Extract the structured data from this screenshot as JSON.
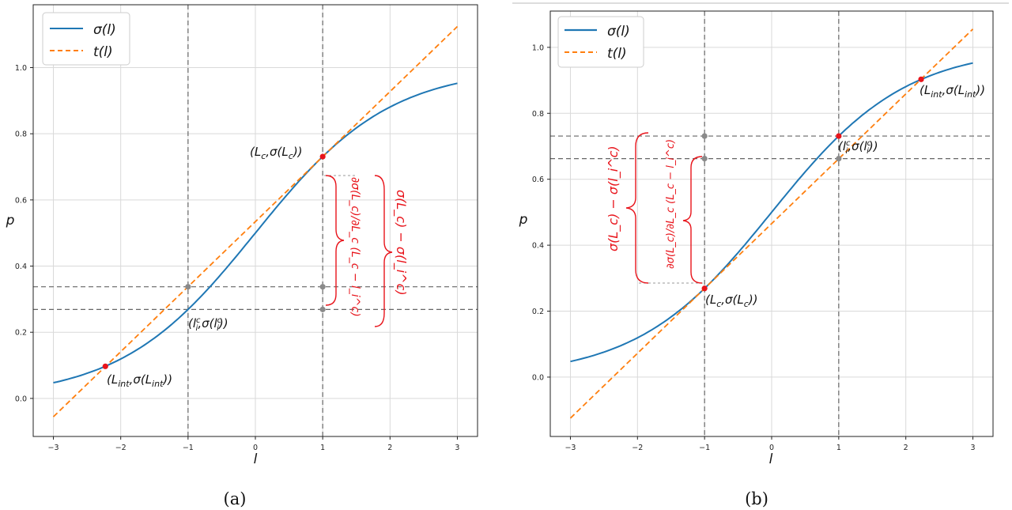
{
  "chart_data": [
    {
      "panel": "(a)",
      "type": "line",
      "xlabel": "l",
      "ylabel": "p",
      "xlim": [
        -3.3,
        3.3
      ],
      "ylim": [
        -0.115,
        1.19
      ],
      "xticks": [
        -3,
        -2,
        -1,
        0,
        1,
        2,
        3
      ],
      "yticks": [
        0.0,
        0.2,
        0.4,
        0.6,
        0.8,
        1.0
      ],
      "xtick_labels": [
        "−3",
        "−2",
        "−1",
        "0",
        "1",
        "2",
        "3"
      ],
      "ytick_labels": [
        "0.0",
        "0.2",
        "0.4",
        "0.6",
        "0.8",
        "1.0"
      ],
      "grid": true,
      "legend": {
        "placement": "top-left",
        "entries": [
          "σ(l)",
          "t(l)"
        ]
      },
      "series": [
        {
          "name": "σ(l)",
          "kind": "sigmoid",
          "x_range": [
            -3,
            3
          ],
          "color": "#1f77b4",
          "style": "solid"
        },
        {
          "name": "t(l)",
          "kind": "tangent_at",
          "tangent_x": 1,
          "x_range": [
            -3,
            3
          ],
          "color": "#ff7f0e",
          "style": "dashed"
        }
      ],
      "vlines": [
        -1,
        1
      ],
      "hlines": [
        0.3375,
        0.2689
      ],
      "red_points": [
        {
          "x": 1,
          "y": 0.731,
          "label": "(L_c,σ(L_c))"
        },
        {
          "x": -2.228,
          "y": 0.097,
          "label": "(L_int,σ(L_int))"
        }
      ],
      "gray_points": [
        {
          "x": -1,
          "y": 0.3375
        },
        {
          "x": 1,
          "y": 0.3375
        },
        {
          "x": 1,
          "y": 0.2689
        }
      ],
      "point_labels": {
        "lc": "(L",
        "lc_sub": "c",
        "lc_mid": ",σ(L",
        "lc_sub2": "c",
        "lc_end": "))",
        "lint": "(L",
        "lint_sub": "int",
        "lint_mid": ",σ(L",
        "lint_sub2": "int",
        "lint_end": "))",
        "lic": "(l",
        "lic_sup": "c",
        "lic_sub": "i",
        "lic_mid": ",σ(l",
        "lic_sup2": "c",
        "lic_sub2": "i",
        "lic_end": "))"
      },
      "braces": [
        {
          "expr": "∂σ(L_c)/∂L_c (L_c − l_i^c)"
        },
        {
          "expr": "σ(L_c) − σ(l_i^c)"
        }
      ]
    },
    {
      "panel": "(b)",
      "type": "line",
      "xlabel": "l",
      "ylabel": "p",
      "xlim": [
        -3.3,
        3.3
      ],
      "ylim": [
        -0.18,
        1.11
      ],
      "xticks": [
        -3,
        -2,
        -1,
        0,
        1,
        2,
        3
      ],
      "yticks": [
        0.0,
        0.2,
        0.4,
        0.6,
        0.8,
        1.0
      ],
      "xtick_labels": [
        "−3",
        "−2",
        "−1",
        "0",
        "1",
        "2",
        "3"
      ],
      "ytick_labels": [
        "0.0",
        "0.2",
        "0.4",
        "0.6",
        "0.8",
        "1.0"
      ],
      "grid": true,
      "legend": {
        "placement": "top-left",
        "entries": [
          "σ(l)",
          "t(l)"
        ]
      },
      "series": [
        {
          "name": "σ(l)",
          "kind": "sigmoid",
          "x_range": [
            -3,
            3
          ],
          "color": "#1f77b4",
          "style": "solid"
        },
        {
          "name": "t(l)",
          "kind": "tangent_at",
          "tangent_x": -1,
          "x_range": [
            -3,
            3
          ],
          "color": "#ff7f0e",
          "style": "dashed"
        }
      ],
      "vlines": [
        -1,
        1
      ],
      "hlines": [
        0.731,
        0.6625
      ],
      "red_points": [
        {
          "x": -1,
          "y": 0.2689,
          "label": "(L_c,σ(L_c))"
        },
        {
          "x": 1,
          "y": 0.731,
          "label": "(l_i^c,σ(l_i^c))"
        },
        {
          "x": 2.228,
          "y": 0.903,
          "label": "(L_int,σ(L_int))"
        }
      ],
      "gray_points": [
        {
          "x": -1,
          "y": 0.731
        },
        {
          "x": -1,
          "y": 0.6625
        },
        {
          "x": 1,
          "y": 0.6625
        }
      ],
      "point_labels": {
        "lc": "(L",
        "lc_sub": "c",
        "lc_mid": ",σ(L",
        "lc_sub2": "c",
        "lc_end": "))",
        "lint": "(L",
        "lint_sub": "int",
        "lint_mid": ",σ(L",
        "lint_sub2": "int",
        "lint_end": "))",
        "lic": "(l",
        "lic_sup": "c",
        "lic_sub": "i",
        "lic_mid": ",σ(l",
        "lic_sup2": "c",
        "lic_sub2": "i",
        "lic_end": "))"
      },
      "braces": [
        {
          "expr": "σ(L_c) − σ(l_i^c)"
        },
        {
          "expr": "∂σ(L_c)/∂L_c (L_c − l_i^c)"
        }
      ]
    }
  ],
  "colors": {
    "sigma": "#1f77b4",
    "tangent": "#ff7f0e",
    "point": "#e8141b",
    "aux": "#888888",
    "annotation": "#e8141b"
  },
  "captions": [
    "(a)",
    "(b)"
  ]
}
